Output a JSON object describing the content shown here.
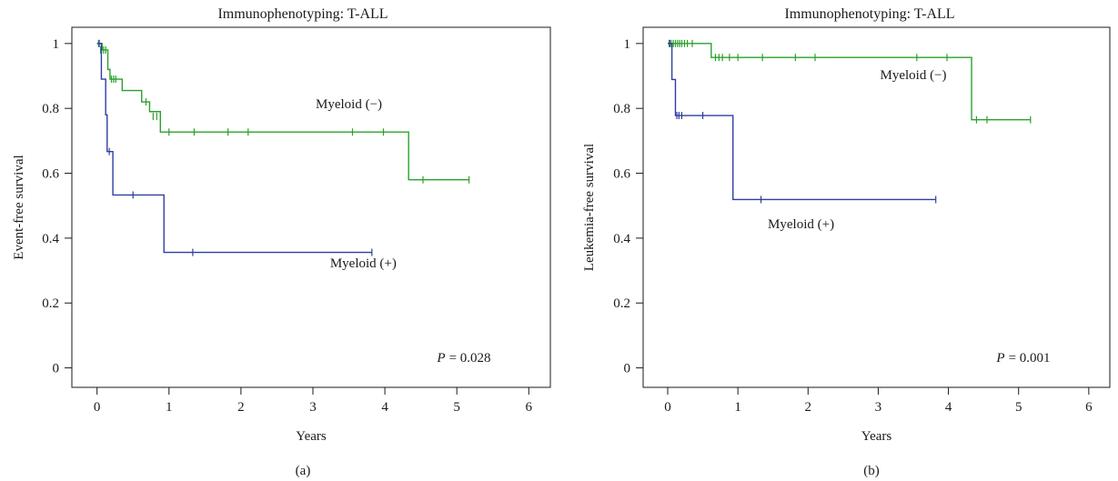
{
  "chart_data": [
    {
      "type": "line",
      "panel_label": "(a)",
      "title": "Immunophenotyping: T-ALL",
      "xlabel": "Years",
      "ylabel": "Event-free survival",
      "xlim": [
        -0.35,
        6.3
      ],
      "ylim": [
        -0.06,
        1.05
      ],
      "x_ticks": [
        0,
        1,
        2,
        3,
        4,
        5,
        6
      ],
      "y_ticks": [
        0,
        0.2,
        0.4,
        0.6,
        0.8,
        1
      ],
      "y_tick_labels": [
        "0",
        "0.2",
        "0.4",
        "0.6",
        "0.8",
        "1"
      ],
      "pvalue": {
        "label": "P",
        "text": "= 0.028"
      },
      "series": [
        {
          "name": "Myeloid (−)",
          "color": "#2ca02c",
          "steps": [
            [
              0,
              1.0
            ],
            [
              0.07,
              0.98
            ],
            [
              0.15,
              0.92
            ],
            [
              0.18,
              0.89
            ],
            [
              0.35,
              0.855
            ],
            [
              0.62,
              0.82
            ],
            [
              0.73,
              0.79
            ],
            [
              0.88,
              0.727
            ],
            [
              4.33,
              0.727
            ],
            [
              4.33,
              0.58
            ],
            [
              5.17,
              0.58
            ]
          ],
          "censors": [
            [
              0.02,
              1.0
            ],
            [
              0.05,
              0.98
            ],
            [
              0.09,
              0.98
            ],
            [
              0.12,
              0.98
            ],
            [
              0.2,
              0.89
            ],
            [
              0.23,
              0.89
            ],
            [
              0.26,
              0.89
            ],
            [
              0.68,
              0.82
            ],
            [
              0.78,
              0.775
            ],
            [
              0.83,
              0.775
            ],
            [
              1.0,
              0.727
            ],
            [
              1.35,
              0.727
            ],
            [
              1.82,
              0.727
            ],
            [
              2.1,
              0.727
            ],
            [
              3.55,
              0.727
            ],
            [
              3.98,
              0.727
            ],
            [
              4.53,
              0.58
            ],
            [
              5.17,
              0.58
            ]
          ],
          "label_pos": [
            3.5,
            0.8
          ]
        },
        {
          "name": "Myeloid (+)",
          "color": "#2e3f9e",
          "steps": [
            [
              0,
              1.0
            ],
            [
              0.06,
              0.89
            ],
            [
              0.12,
              0.78
            ],
            [
              0.14,
              0.667
            ],
            [
              0.22,
              0.533
            ],
            [
              0.93,
              0.533
            ],
            [
              0.93,
              0.356
            ],
            [
              3.82,
              0.356
            ]
          ],
          "censors": [
            [
              0.03,
              1.0
            ],
            [
              0.17,
              0.667
            ],
            [
              0.5,
              0.533
            ],
            [
              1.33,
              0.356
            ],
            [
              3.82,
              0.356
            ]
          ],
          "label_pos": [
            3.7,
            0.31
          ]
        }
      ]
    },
    {
      "type": "line",
      "panel_label": "(b)",
      "title": "Immunophenotyping: T-ALL",
      "xlabel": "Years",
      "ylabel": "Leukemia-free survival",
      "xlim": [
        -0.35,
        6.3
      ],
      "ylim": [
        -0.06,
        1.05
      ],
      "x_ticks": [
        0,
        1,
        2,
        3,
        4,
        5,
        6
      ],
      "y_ticks": [
        0,
        0.2,
        0.4,
        0.6,
        0.8,
        1
      ],
      "y_tick_labels": [
        "0",
        "0.2",
        "0.4",
        "0.6",
        "0.8",
        "1"
      ],
      "pvalue": {
        "label": "P",
        "text": "= 0.001"
      },
      "series": [
        {
          "name": "Myeloid (−)",
          "color": "#2ca02c",
          "steps": [
            [
              0,
              1.0
            ],
            [
              0.62,
              1.0
            ],
            [
              0.62,
              0.957
            ],
            [
              4.33,
              0.957
            ],
            [
              4.33,
              0.765
            ],
            [
              5.17,
              0.765
            ]
          ],
          "censors": [
            [
              0.02,
              1.0
            ],
            [
              0.05,
              1.0
            ],
            [
              0.08,
              1.0
            ],
            [
              0.11,
              1.0
            ],
            [
              0.14,
              1.0
            ],
            [
              0.17,
              1.0
            ],
            [
              0.2,
              1.0
            ],
            [
              0.24,
              1.0
            ],
            [
              0.28,
              1.0
            ],
            [
              0.35,
              1.0
            ],
            [
              0.68,
              0.957
            ],
            [
              0.73,
              0.957
            ],
            [
              0.78,
              0.957
            ],
            [
              0.88,
              0.957
            ],
            [
              1.0,
              0.957
            ],
            [
              1.35,
              0.957
            ],
            [
              1.82,
              0.957
            ],
            [
              2.1,
              0.957
            ],
            [
              3.55,
              0.957
            ],
            [
              3.98,
              0.957
            ],
            [
              4.4,
              0.765
            ],
            [
              4.55,
              0.765
            ],
            [
              5.17,
              0.765
            ]
          ],
          "label_pos": [
            3.5,
            0.89
          ]
        },
        {
          "name": "Myeloid (+)",
          "color": "#2e3f9e",
          "steps": [
            [
              0,
              1.0
            ],
            [
              0.06,
              0.889
            ],
            [
              0.11,
              0.778
            ],
            [
              0.93,
              0.778
            ],
            [
              0.93,
              0.519
            ],
            [
              3.82,
              0.519
            ]
          ],
          "censors": [
            [
              0.03,
              1.0
            ],
            [
              0.13,
              0.778
            ],
            [
              0.16,
              0.778
            ],
            [
              0.2,
              0.778
            ],
            [
              0.5,
              0.778
            ],
            [
              1.33,
              0.519
            ],
            [
              3.82,
              0.519
            ]
          ],
          "label_pos": [
            1.9,
            0.43
          ]
        }
      ]
    }
  ]
}
